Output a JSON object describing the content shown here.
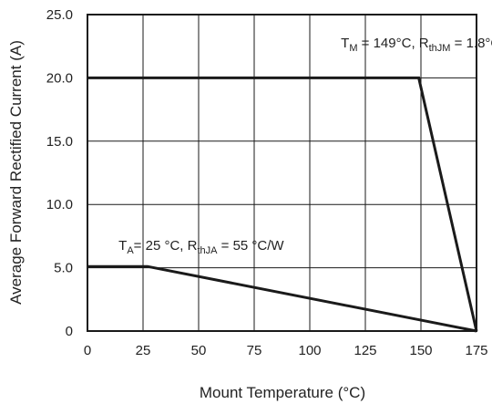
{
  "chart_data": {
    "type": "line",
    "title": "",
    "xlabel": "Mount Temperature (°C)",
    "ylabel": "Average Forward Rectified Current (A)",
    "xlim": [
      0,
      175
    ],
    "ylim": [
      0,
      25
    ],
    "x_ticks": [
      0,
      25,
      50,
      75,
      100,
      125,
      150,
      175
    ],
    "x_tick_labels": [
      "0",
      "25",
      "50",
      "75",
      "100",
      "125",
      "150",
      "175"
    ],
    "y_ticks": [
      0,
      5,
      10,
      15,
      20,
      25
    ],
    "y_tick_labels": [
      "0",
      "5.0",
      "10.0",
      "15.0",
      "20.0",
      "25.0"
    ],
    "grid": true,
    "legend": "none",
    "series": [
      {
        "x": [
          0,
          149,
          175
        ],
        "y": [
          20,
          20,
          0
        ],
        "annotation": {
          "parts": [
            {
              "text": "T",
              "sub": false
            },
            {
              "text": "M",
              "sub": true
            },
            {
              "text": " = 149",
              "sub": false
            },
            {
              "text": "°",
              "sub": false
            },
            {
              "text": "C, R",
              "sub": false
            },
            {
              "text": "thJM",
              "sub": true
            },
            {
              "text": " = 1.8",
              "sub": false
            },
            {
              "text": "°",
              "sub": false
            },
            {
              "text": "C/W",
              "sub": false
            }
          ],
          "at": [
            114,
            22.4
          ]
        }
      },
      {
        "x": [
          0,
          27,
          175
        ],
        "y": [
          5.1,
          5.1,
          0
        ],
        "annotation": {
          "parts": [
            {
              "text": "T",
              "sub": false
            },
            {
              "text": "A",
              "sub": true
            },
            {
              "text": "= 25 °C, R",
              "sub": false
            },
            {
              "text": "thJA",
              "sub": true
            },
            {
              "text": " = 55 °C/W",
              "sub": false
            }
          ],
          "at": [
            14,
            6.4
          ]
        }
      }
    ],
    "line_color": "#1a1a1a",
    "grid_color": "#1a1a1a"
  }
}
